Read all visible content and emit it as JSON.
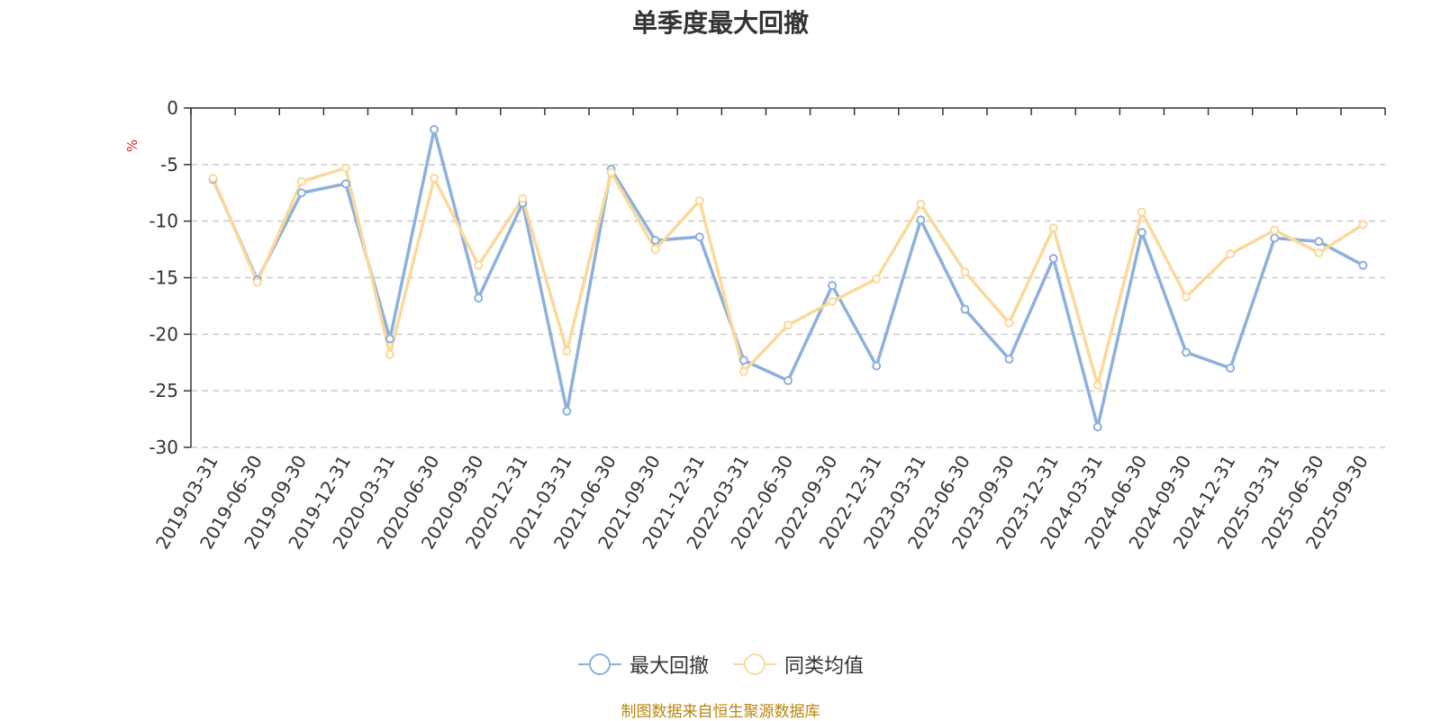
{
  "chart_data": {
    "type": "line",
    "title": "单季度最大回撤",
    "ylabel": "%",
    "xlabel": "",
    "ylim": [
      -30,
      0
    ],
    "yticks": [
      "0",
      "-5",
      "-10",
      "-15",
      "-20",
      "-25",
      "-30"
    ],
    "ytick_values": [
      0,
      -5,
      -10,
      -15,
      -20,
      -25,
      -30
    ],
    "grid": "horizontal dashed",
    "legend_position": "bottom",
    "categories": [
      "2019-03-31",
      "2019-06-30",
      "2019-09-30",
      "2019-12-31",
      "2020-03-31",
      "2020-06-30",
      "2020-09-30",
      "2020-12-31",
      "2021-03-31",
      "2021-06-30",
      "2021-09-30",
      "2021-12-31",
      "2022-03-31",
      "2022-06-30",
      "2022-09-30",
      "2022-12-31",
      "2023-03-31",
      "2023-06-30",
      "2023-09-30",
      "2023-12-31",
      "2024-03-31",
      "2024-06-30",
      "2024-09-30",
      "2024-12-31",
      "2025-03-31",
      "2025-06-30",
      "2025-09-30"
    ],
    "series": [
      {
        "name": "最大回撤",
        "color": "#8eb0dc",
        "values": [
          -6.3,
          -15.2,
          -7.5,
          -6.7,
          -20.4,
          -1.9,
          -16.8,
          -8.4,
          -26.8,
          -5.4,
          -11.7,
          -11.4,
          -22.3,
          -24.1,
          -15.7,
          -22.8,
          -9.9,
          -17.8,
          -22.2,
          -13.3,
          -28.2,
          -11.0,
          -21.6,
          -23.0,
          -11.5,
          -11.8,
          -13.9
        ]
      },
      {
        "name": "同类均值",
        "color": "#fbd99b",
        "values": [
          -6.2,
          -15.4,
          -6.5,
          -5.3,
          -21.8,
          -6.2,
          -13.9,
          -8.0,
          -21.5,
          -5.7,
          -12.5,
          -8.2,
          -23.3,
          -19.2,
          -17.1,
          -15.1,
          -8.5,
          -14.5,
          -19.0,
          -10.6,
          -24.5,
          -9.2,
          -16.7,
          -12.9,
          -10.8,
          -12.8,
          -10.3
        ]
      }
    ]
  },
  "source_note": "制图数据来自恒生聚源数据库"
}
